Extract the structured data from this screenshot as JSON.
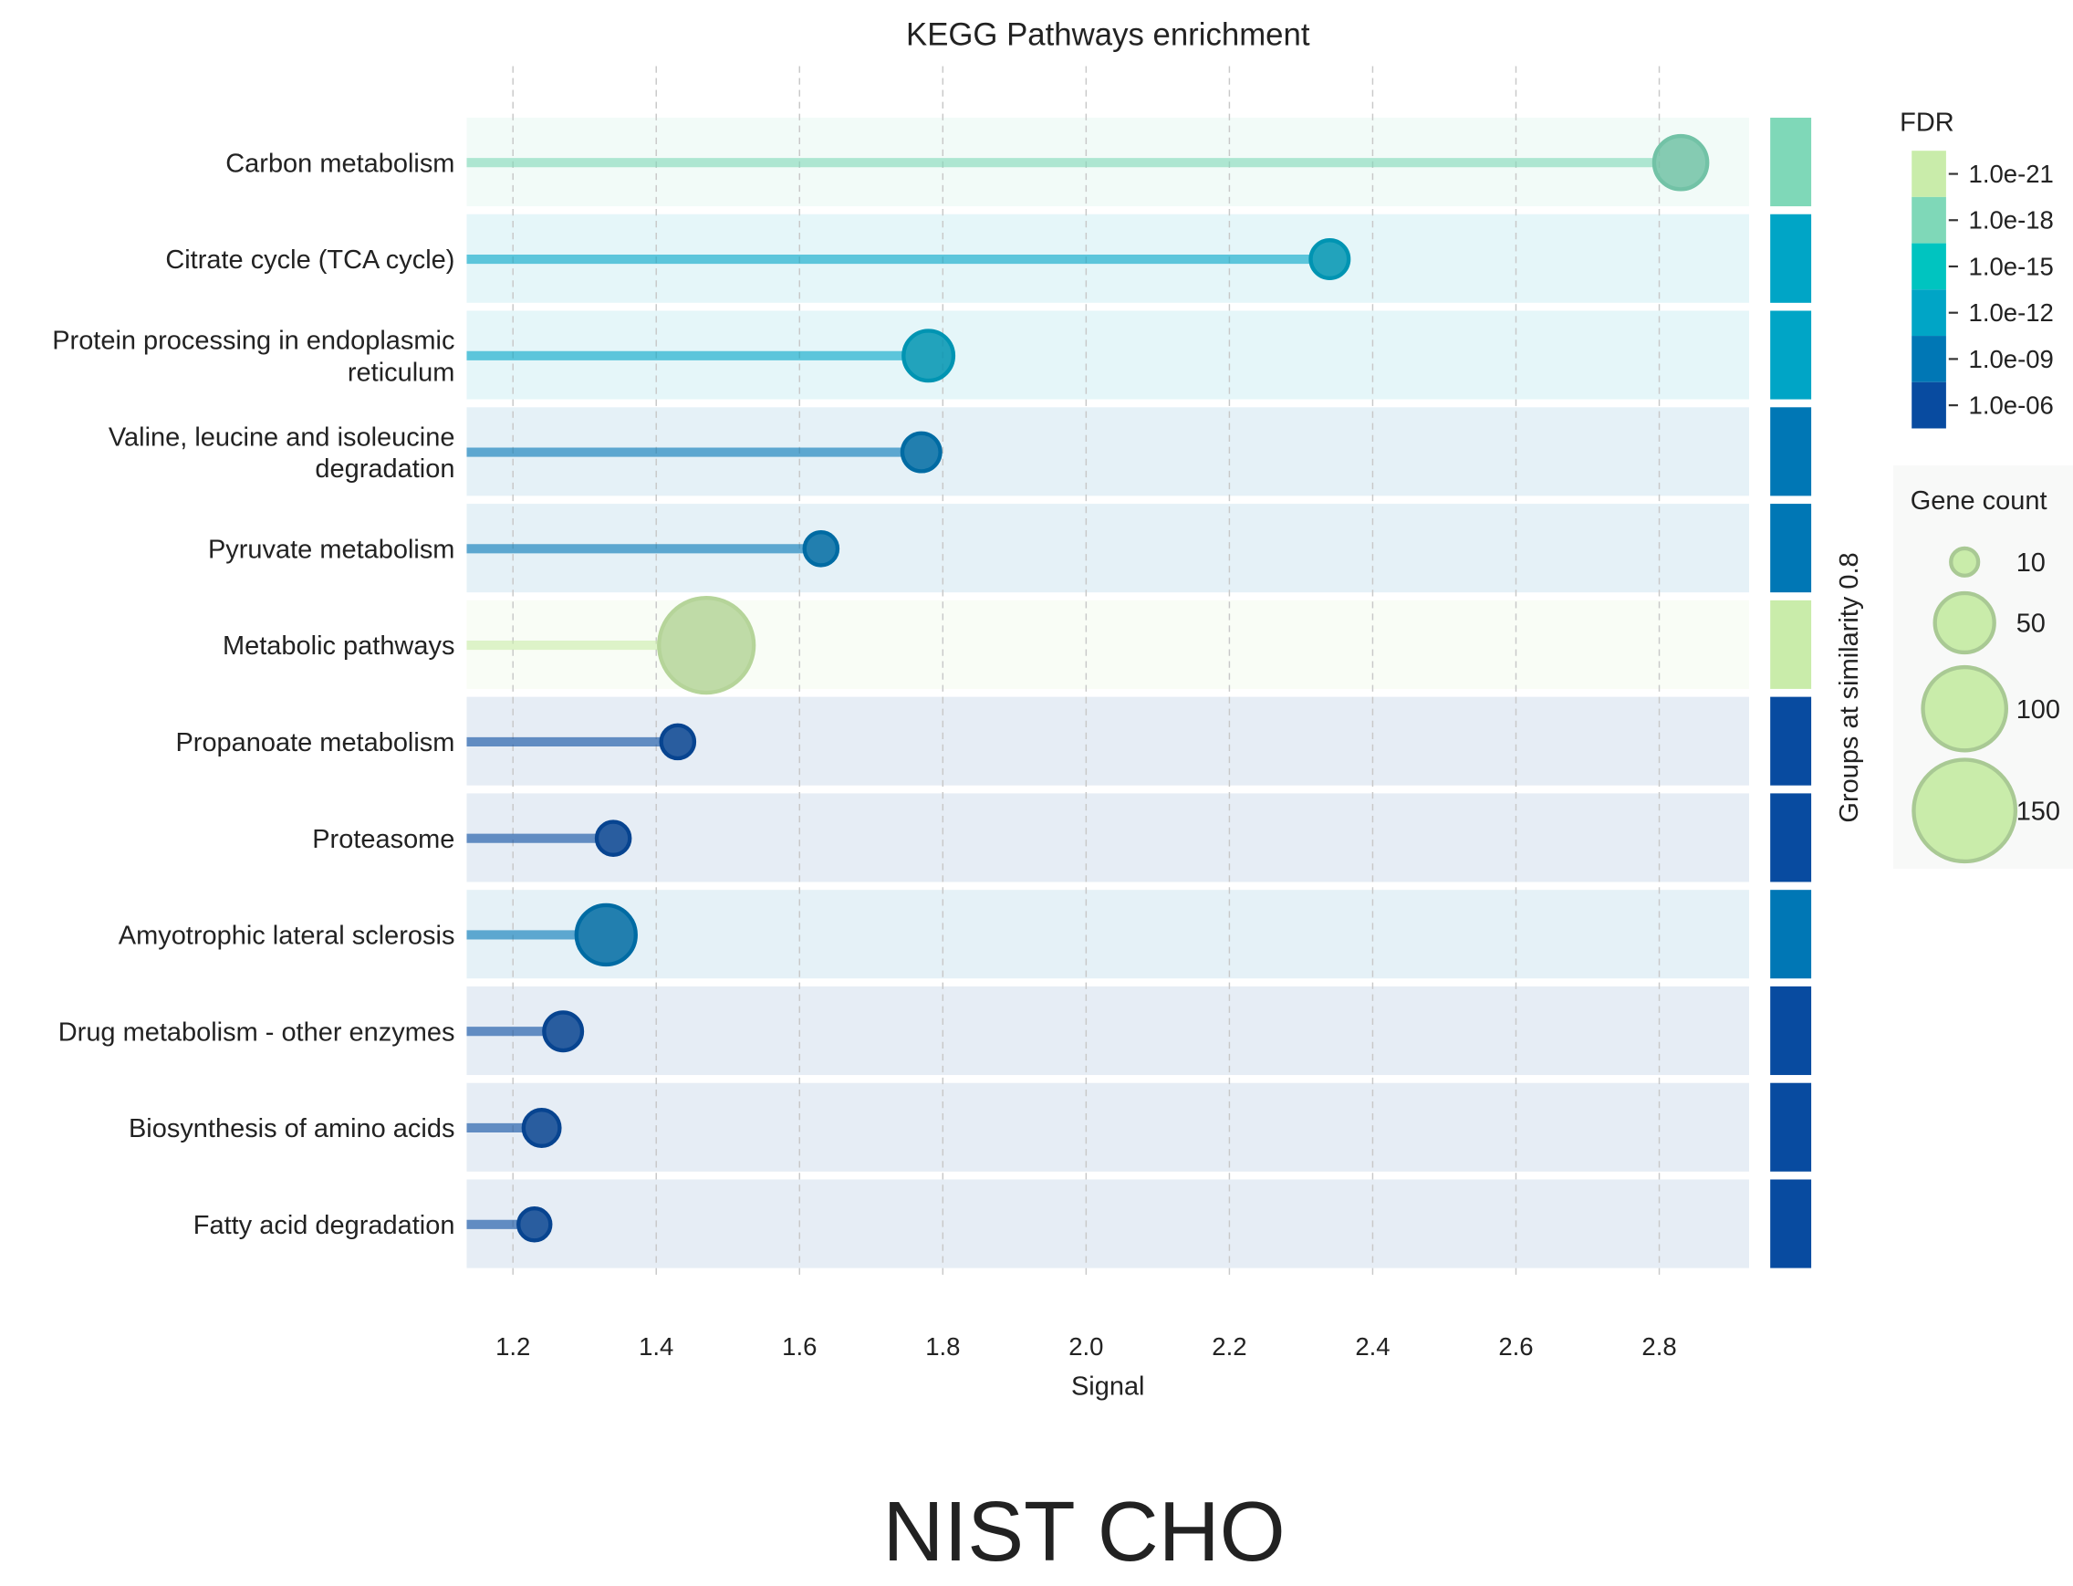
{
  "chart_data": {
    "type": "lollipop",
    "title": "KEGG Pathways enrichment",
    "xlabel": "Signal",
    "xlim": [
      1.135,
      2.93
    ],
    "xticks": [
      "1.2",
      "1.4",
      "1.6",
      "1.8",
      "2.0",
      "2.2",
      "2.4",
      "2.6",
      "2.8"
    ],
    "group_axis_label": "Groups at similarity 0.8",
    "grid": true,
    "categories": [
      {
        "label": [
          "Carbon metabolism"
        ],
        "signal": 2.83,
        "gene_count": 40,
        "fdr": "1.0e-18"
      },
      {
        "label": [
          "Citrate cycle (TCA cycle)"
        ],
        "signal": 2.34,
        "gene_count": 20,
        "fdr": "1.0e-12"
      },
      {
        "label": [
          "Protein processing in endoplasmic",
          "reticulum"
        ],
        "signal": 1.78,
        "gene_count": 35,
        "fdr": "1.0e-12"
      },
      {
        "label": [
          "Valine, leucine and isoleucine",
          "degradation"
        ],
        "signal": 1.77,
        "gene_count": 20,
        "fdr": "1.0e-09"
      },
      {
        "label": [
          "Pyruvate metabolism"
        ],
        "signal": 1.63,
        "gene_count": 15,
        "fdr": "1.0e-09"
      },
      {
        "label": [
          "Metabolic pathways"
        ],
        "signal": 1.47,
        "gene_count": 130,
        "fdr": "1.0e-21"
      },
      {
        "label": [
          "Propanoate metabolism"
        ],
        "signal": 1.43,
        "gene_count": 15,
        "fdr": "1.0e-06"
      },
      {
        "label": [
          "Proteasome"
        ],
        "signal": 1.34,
        "gene_count": 15,
        "fdr": "1.0e-06"
      },
      {
        "label": [
          "Amyotrophic lateral sclerosis"
        ],
        "signal": 1.33,
        "gene_count": 50,
        "fdr": "1.0e-09"
      },
      {
        "label": [
          "Drug metabolism - other enzymes"
        ],
        "signal": 1.27,
        "gene_count": 20,
        "fdr": "1.0e-06"
      },
      {
        "label": [
          "Biosynthesis of amino acids"
        ],
        "signal": 1.24,
        "gene_count": 18,
        "fdr": "1.0e-06"
      },
      {
        "label": [
          "Fatty acid degradation"
        ],
        "signal": 1.23,
        "gene_count": 14,
        "fdr": "1.0e-06"
      }
    ],
    "fdr_legend": {
      "title": "FDR",
      "levels": [
        {
          "label": "1.0e-21",
          "color": "#c9ecaa"
        },
        {
          "label": "1.0e-18",
          "color": "#7fd8b8"
        },
        {
          "label": "1.0e-15",
          "color": "#00c4c0"
        },
        {
          "label": "1.0e-12",
          "color": "#00a5c6"
        },
        {
          "label": "1.0e-09",
          "color": "#0077b5"
        },
        {
          "label": "1.0e-06",
          "color": "#084ba0"
        }
      ]
    },
    "size_legend": {
      "title": "Gene count",
      "values": [
        "10",
        "50",
        "100",
        "150"
      ]
    }
  },
  "caption": "NIST CHO"
}
